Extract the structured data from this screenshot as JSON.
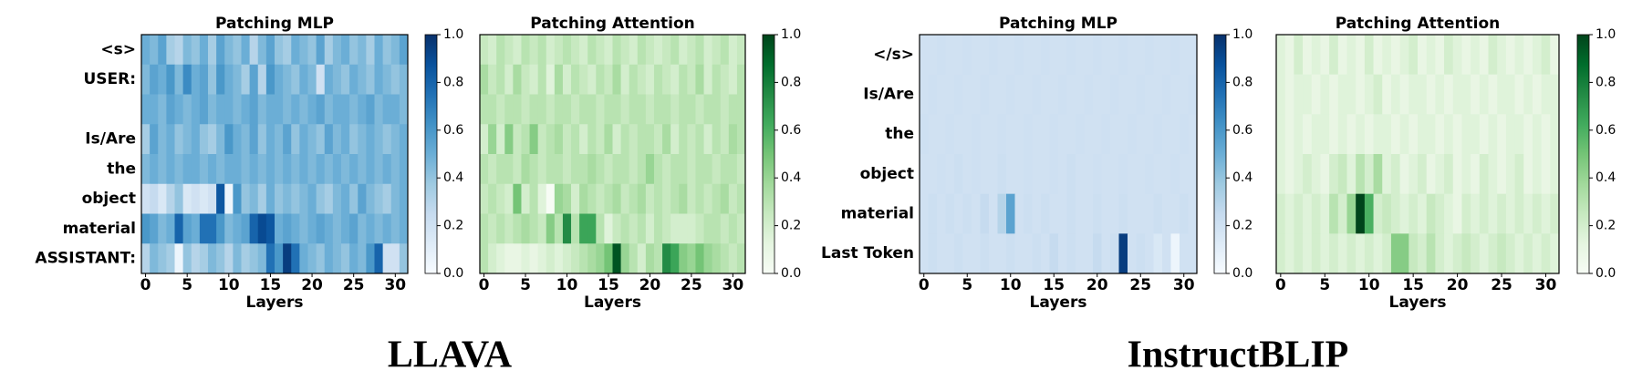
{
  "figure_labels": [
    "LLAVA",
    "InstructBLIP"
  ],
  "chart_data": [
    {
      "type": "heatmap",
      "title": "Patching MLP",
      "xlabel": "Layers",
      "colormap": "Blues",
      "y": [
        "<s>",
        "USER:",
        null,
        "Is/Are",
        "the",
        "object",
        "material",
        "ASSISTANT:"
      ],
      "xlim": [
        -0.5,
        31.5
      ],
      "xticks": [
        0,
        5,
        10,
        15,
        20,
        25,
        30
      ],
      "clim": [
        0,
        1
      ],
      "cticks": [
        {
          "value": 0,
          "label": "0.0"
        },
        {
          "value": 0.2,
          "label": "0.2"
        },
        {
          "value": 0.4,
          "label": "0.4"
        },
        {
          "value": 0.6,
          "label": "0.6"
        },
        {
          "value": 0.8,
          "label": "0.8"
        },
        {
          "value": 1,
          "label": "1.0"
        }
      ],
      "values": [
        [
          0.5,
          0.45,
          0.55,
          0.35,
          0.3,
          0.45,
          0.4,
          0.5,
          0.35,
          0.55,
          0.45,
          0.4,
          0.5,
          0.3,
          0.45,
          0.55,
          0.4,
          0.35,
          0.5,
          0.45,
          0.4,
          0.55,
          0.35,
          0.45,
          0.5,
          0.4,
          0.45,
          0.35,
          0.5,
          0.4,
          0.45,
          0.55
        ],
        [
          0.45,
          0.55,
          0.5,
          0.6,
          0.45,
          0.65,
          0.5,
          0.55,
          0.4,
          0.6,
          0.5,
          0.45,
          0.35,
          0.55,
          0.3,
          0.6,
          0.5,
          0.45,
          0.4,
          0.5,
          0.45,
          0.2,
          0.5,
          0.45,
          0.4,
          0.5,
          0.45,
          0.4,
          0.5,
          0.45,
          0.4,
          0.45
        ],
        [
          0.5,
          0.5,
          0.45,
          0.55,
          0.5,
          0.45,
          0.5,
          0.55,
          0.45,
          0.5,
          0.5,
          0.45,
          0.5,
          0.55,
          0.45,
          0.5,
          0.5,
          0.45,
          0.5,
          0.45,
          0.5,
          0.55,
          0.45,
          0.5,
          0.5,
          0.45,
          0.5,
          0.55,
          0.45,
          0.5,
          0.5,
          0.45
        ],
        [
          0.35,
          0.55,
          0.45,
          0.5,
          0.4,
          0.45,
          0.5,
          0.4,
          0.35,
          0.45,
          0.6,
          0.5,
          0.45,
          0.55,
          0.4,
          0.5,
          0.45,
          0.55,
          0.4,
          0.5,
          0.45,
          0.4,
          0.55,
          0.45,
          0.5,
          0.4,
          0.45,
          0.5,
          0.45,
          0.4,
          0.45,
          0.5
        ],
        [
          0.45,
          0.5,
          0.45,
          0.5,
          0.45,
          0.5,
          0.5,
          0.45,
          0.5,
          0.45,
          0.5,
          0.5,
          0.45,
          0.5,
          0.45,
          0.5,
          0.45,
          0.5,
          0.45,
          0.5,
          0.45,
          0.5,
          0.45,
          0.5,
          0.45,
          0.5,
          0.45,
          0.5,
          0.45,
          0.5,
          0.45,
          0.5
        ],
        [
          0.2,
          0.25,
          0.15,
          0.3,
          0.4,
          0.15,
          0.2,
          0.15,
          0.2,
          0.85,
          0.05,
          0.6,
          0.4,
          0.45,
          0.35,
          0.5,
          0.4,
          0.45,
          0.4,
          0.45,
          0.5,
          0.4,
          0.35,
          0.45,
          0.5,
          0.4,
          0.55,
          0.45,
          0.4,
          0.35,
          0.45,
          0.5
        ],
        [
          0.6,
          0.55,
          0.45,
          0.5,
          0.8,
          0.55,
          0.5,
          0.75,
          0.75,
          0.6,
          0.45,
          0.5,
          0.55,
          0.8,
          0.9,
          0.85,
          0.5,
          0.55,
          0.5,
          0.45,
          0.5,
          0.55,
          0.5,
          0.45,
          0.5,
          0.55,
          0.45,
          0.5,
          0.45,
          0.5,
          0.45,
          0.5
        ],
        [
          0.3,
          0.45,
          0.4,
          0.35,
          0.05,
          0.4,
          0.3,
          0.35,
          0.45,
          0.4,
          0.3,
          0.45,
          0.35,
          0.4,
          0.45,
          0.75,
          0.6,
          0.95,
          0.75,
          0.5,
          0.45,
          0.4,
          0.5,
          0.45,
          0.4,
          0.5,
          0.45,
          0.6,
          0.8,
          0.2,
          0.2,
          0.4
        ]
      ]
    },
    {
      "type": "heatmap",
      "title": "Patching Attention",
      "xlabel": "Layers",
      "colormap": "Greens",
      "xlim": [
        -0.5,
        31.5
      ],
      "xticks": [
        0,
        5,
        10,
        15,
        20,
        25,
        30
      ],
      "clim": [
        0,
        1
      ],
      "cticks": [
        {
          "value": 0,
          "label": "0.0"
        },
        {
          "value": 0.2,
          "label": "0.2"
        },
        {
          "value": 0.4,
          "label": "0.4"
        },
        {
          "value": 0.6,
          "label": "0.6"
        },
        {
          "value": 0.8,
          "label": "0.8"
        },
        {
          "value": 1,
          "label": "1.0"
        }
      ],
      "values": [
        [
          0.25,
          0.2,
          0.3,
          0.25,
          0.2,
          0.3,
          0.25,
          0.3,
          0.2,
          0.25,
          0.3,
          0.25,
          0.2,
          0.3,
          0.25,
          0.2,
          0.3,
          0.25,
          0.2,
          0.3,
          0.25,
          0.2,
          0.25,
          0.3,
          0.2,
          0.25,
          0.3,
          0.2,
          0.25,
          0.3,
          0.2,
          0.25
        ],
        [
          0.35,
          0.25,
          0.3,
          0.2,
          0.35,
          0.25,
          0.2,
          0.3,
          0.15,
          0.35,
          0.2,
          0.3,
          0.25,
          0.2,
          0.3,
          0.25,
          0.35,
          0.2,
          0.3,
          0.25,
          0.2,
          0.3,
          0.25,
          0.2,
          0.3,
          0.25,
          0.35,
          0.2,
          0.3,
          0.25,
          0.2,
          0.3
        ],
        [
          0.3,
          0.3,
          0.25,
          0.3,
          0.3,
          0.25,
          0.3,
          0.3,
          0.25,
          0.3,
          0.3,
          0.25,
          0.3,
          0.3,
          0.25,
          0.3,
          0.3,
          0.25,
          0.3,
          0.3,
          0.25,
          0.3,
          0.3,
          0.25,
          0.3,
          0.3,
          0.25,
          0.3,
          0.3,
          0.25,
          0.3,
          0.3
        ],
        [
          0.2,
          0.4,
          0.2,
          0.45,
          0.25,
          0.3,
          0.45,
          0.25,
          0.3,
          0.35,
          0.25,
          0.3,
          0.2,
          0.3,
          0.25,
          0.35,
          0.2,
          0.3,
          0.25,
          0.3,
          0.3,
          0.25,
          0.35,
          0.2,
          0.3,
          0.25,
          0.3,
          0.2,
          0.3,
          0.25,
          0.35,
          0.3
        ],
        [
          0.3,
          0.25,
          0.3,
          0.3,
          0.25,
          0.35,
          0.3,
          0.25,
          0.3,
          0.3,
          0.25,
          0.3,
          0.3,
          0.35,
          0.3,
          0.25,
          0.3,
          0.3,
          0.25,
          0.3,
          0.4,
          0.3,
          0.25,
          0.3,
          0.3,
          0.25,
          0.3,
          0.3,
          0.25,
          0.3,
          0.3,
          0.25
        ],
        [
          0.25,
          0.3,
          0.25,
          0.2,
          0.5,
          0.2,
          0.3,
          0.15,
          0.0,
          0.4,
          0.35,
          0.2,
          0.35,
          0.3,
          0.25,
          0.3,
          0.35,
          0.25,
          0.3,
          0.35,
          0.25,
          0.3,
          0.25,
          0.3,
          0.35,
          0.25,
          0.3,
          0.25,
          0.3,
          0.35,
          0.25,
          0.3
        ],
        [
          0.3,
          0.25,
          0.3,
          0.25,
          0.3,
          0.35,
          0.3,
          0.25,
          0.45,
          0.3,
          0.75,
          0.3,
          0.65,
          0.65,
          0.3,
          0.15,
          0.25,
          0.3,
          0.25,
          0.3,
          0.2,
          0.3,
          0.25,
          0.2,
          0.2,
          0.2,
          0.25,
          0.3,
          0.3,
          0.25,
          0.3,
          0.25
        ],
        [
          0.3,
          0.2,
          0.15,
          0.1,
          0.1,
          0.15,
          0.1,
          0.15,
          0.2,
          0.15,
          0.2,
          0.25,
          0.3,
          0.35,
          0.4,
          0.5,
          0.95,
          0.4,
          0.3,
          0.2,
          0.35,
          0.3,
          0.75,
          0.65,
          0.45,
          0.4,
          0.5,
          0.4,
          0.35,
          0.3,
          0.25,
          0.3
        ]
      ]
    },
    {
      "type": "heatmap",
      "title": "Patching MLP",
      "xlabel": "Layers",
      "colormap": "Blues",
      "y": [
        "</s>",
        "Is/Are",
        "the",
        "object",
        "material",
        "Last Token"
      ],
      "xlim": [
        -0.5,
        31.5
      ],
      "xticks": [
        0,
        5,
        10,
        15,
        20,
        25,
        30
      ],
      "clim": [
        0,
        1
      ],
      "cticks": [
        {
          "value": 0,
          "label": "0.0"
        },
        {
          "value": 0.2,
          "label": "0.2"
        },
        {
          "value": 0.4,
          "label": "0.4"
        },
        {
          "value": 0.6,
          "label": "0.6"
        },
        {
          "value": 0.8,
          "label": "0.8"
        },
        {
          "value": 1,
          "label": "1.0"
        }
      ],
      "values": [
        [
          0.2,
          0.2,
          0.21,
          0.2,
          0.2,
          0.21,
          0.2,
          0.2,
          0.21,
          0.2,
          0.2,
          0.21,
          0.2,
          0.2,
          0.21,
          0.2,
          0.2,
          0.21,
          0.2,
          0.2,
          0.21,
          0.2,
          0.2,
          0.21,
          0.2,
          0.2,
          0.21,
          0.2,
          0.2,
          0.21,
          0.2,
          0.2
        ],
        [
          0.2,
          0.21,
          0.2,
          0.2,
          0.21,
          0.2,
          0.2,
          0.21,
          0.2,
          0.2,
          0.21,
          0.2,
          0.2,
          0.21,
          0.2,
          0.2,
          0.21,
          0.2,
          0.2,
          0.21,
          0.2,
          0.2,
          0.21,
          0.2,
          0.2,
          0.21,
          0.2,
          0.2,
          0.21,
          0.2,
          0.2,
          0.21
        ],
        [
          0.21,
          0.2,
          0.2,
          0.21,
          0.2,
          0.2,
          0.21,
          0.2,
          0.2,
          0.21,
          0.2,
          0.2,
          0.21,
          0.2,
          0.2,
          0.21,
          0.2,
          0.2,
          0.21,
          0.2,
          0.2,
          0.21,
          0.2,
          0.2,
          0.21,
          0.2,
          0.2,
          0.21,
          0.2,
          0.2,
          0.21,
          0.2
        ],
        [
          0.2,
          0.2,
          0.21,
          0.2,
          0.22,
          0.2,
          0.21,
          0.2,
          0.2,
          0.22,
          0.2,
          0.2,
          0.21,
          0.2,
          0.2,
          0.21,
          0.2,
          0.22,
          0.2,
          0.2,
          0.21,
          0.2,
          0.2,
          0.21,
          0.2,
          0.2,
          0.21,
          0.2,
          0.2,
          0.21,
          0.2,
          0.2
        ],
        [
          0.2,
          0.22,
          0.2,
          0.22,
          0.2,
          0.22,
          0.2,
          0.25,
          0.2,
          0.3,
          0.55,
          0.2,
          0.22,
          0.2,
          0.22,
          0.2,
          0.2,
          0.22,
          0.2,
          0.2,
          0.22,
          0.2,
          0.2,
          0.22,
          0.2,
          0.2,
          0.2,
          0.22,
          0.2,
          0.2,
          0.22,
          0.2
        ],
        [
          0.2,
          0.22,
          0.2,
          0.2,
          0.22,
          0.2,
          0.2,
          0.22,
          0.2,
          0.2,
          0.22,
          0.2,
          0.2,
          0.22,
          0.2,
          0.25,
          0.2,
          0.22,
          0.2,
          0.2,
          0.25,
          0.2,
          0.22,
          0.95,
          0.2,
          0.22,
          0.2,
          0.15,
          0.2,
          0.05,
          0.2,
          0.2
        ]
      ]
    },
    {
      "type": "heatmap",
      "title": "Patching Attention",
      "xlabel": "Layers",
      "colormap": "Greens",
      "xlim": [
        -0.5,
        31.5
      ],
      "xticks": [
        0,
        5,
        10,
        15,
        20,
        25,
        30
      ],
      "clim": [
        0,
        1
      ],
      "cticks": [
        {
          "value": 0,
          "label": "0.0"
        },
        {
          "value": 0.2,
          "label": "0.2"
        },
        {
          "value": 0.4,
          "label": "0.4"
        },
        {
          "value": 0.6,
          "label": "0.6"
        },
        {
          "value": 0.8,
          "label": "0.8"
        },
        {
          "value": 1,
          "label": "1.0"
        }
      ],
      "values": [
        [
          0.15,
          0.1,
          0.2,
          0.1,
          0.15,
          0.1,
          0.2,
          0.1,
          0.15,
          0.1,
          0.2,
          0.1,
          0.15,
          0.1,
          0.15,
          0.2,
          0.1,
          0.15,
          0.1,
          0.2,
          0.15,
          0.1,
          0.15,
          0.1,
          0.2,
          0.15,
          0.1,
          0.15,
          0.1,
          0.15,
          0.2,
          0.1
        ],
        [
          0.15,
          0.1,
          0.15,
          0.15,
          0.1,
          0.15,
          0.1,
          0.15,
          0.15,
          0.1,
          0.15,
          0.2,
          0.1,
          0.15,
          0.1,
          0.15,
          0.15,
          0.1,
          0.15,
          0.1,
          0.15,
          0.15,
          0.1,
          0.15,
          0.1,
          0.15,
          0.15,
          0.1,
          0.15,
          0.1,
          0.15,
          0.15
        ],
        [
          0.15,
          0.1,
          0.15,
          0.1,
          0.15,
          0.15,
          0.1,
          0.15,
          0.1,
          0.15,
          0.1,
          0.15,
          0.15,
          0.1,
          0.15,
          0.1,
          0.15,
          0.15,
          0.1,
          0.15,
          0.1,
          0.15,
          0.15,
          0.1,
          0.15,
          0.1,
          0.15,
          0.15,
          0.1,
          0.15,
          0.1,
          0.15
        ],
        [
          0.15,
          0.1,
          0.15,
          0.2,
          0.15,
          0.1,
          0.2,
          0.25,
          0.15,
          0.3,
          0.2,
          0.35,
          0.15,
          0.2,
          0.1,
          0.15,
          0.2,
          0.1,
          0.15,
          0.2,
          0.1,
          0.15,
          0.1,
          0.2,
          0.15,
          0.1,
          0.15,
          0.2,
          0.1,
          0.15,
          0.1,
          0.15
        ],
        [
          0.2,
          0.15,
          0.2,
          0.15,
          0.2,
          0.15,
          0.3,
          0.2,
          0.4,
          1.0,
          0.6,
          0.2,
          0.25,
          0.2,
          0.15,
          0.2,
          0.15,
          0.25,
          0.2,
          0.15,
          0.1,
          0.2,
          0.15,
          0.2,
          0.15,
          0.2,
          0.15,
          0.2,
          0.15,
          0.2,
          0.15,
          0.2
        ],
        [
          0.2,
          0.15,
          0.2,
          0.15,
          0.2,
          0.15,
          0.2,
          0.15,
          0.2,
          0.15,
          0.2,
          0.15,
          0.2,
          0.45,
          0.45,
          0.25,
          0.2,
          0.3,
          0.2,
          0.15,
          0.2,
          0.25,
          0.2,
          0.15,
          0.2,
          0.25,
          0.2,
          0.15,
          0.2,
          0.15,
          0.2,
          0.15
        ]
      ]
    }
  ]
}
